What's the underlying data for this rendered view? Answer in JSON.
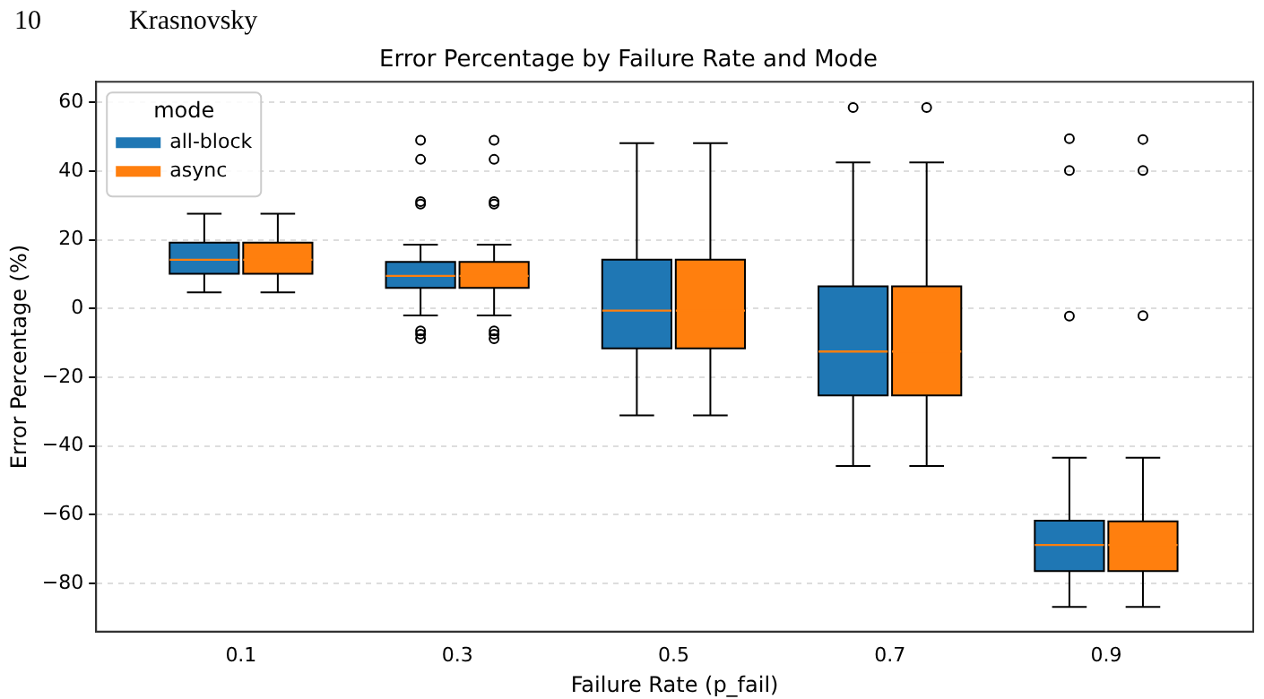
{
  "chart_data": {
    "type": "box",
    "title": "Error Percentage by Failure Rate and Mode",
    "xlabel": "Failure Rate (p_fail)",
    "ylabel": "Error Percentage (%)",
    "legend_title": "mode",
    "annotations": [
      "10",
      "Krasnovsky"
    ],
    "categories": [
      "0.1",
      "0.3",
      "0.5",
      "0.7",
      "0.9"
    ],
    "ylim": [
      -94,
      66
    ],
    "yticks": [
      -80,
      -60,
      -40,
      -20,
      0,
      20,
      40,
      60
    ],
    "grid": "y",
    "legend": "top left",
    "series": [
      {
        "name": "all-block",
        "color": "#1f77b4",
        "boxes": [
          {
            "low": 4.7,
            "q1": 10.1,
            "median": 14.2,
            "q3": 19.2,
            "high": 27.6
          },
          {
            "low": -2.0,
            "q1": 6.0,
            "median": 9.5,
            "q3": 13.6,
            "high": 18.6,
            "outliers": [
              49,
              43.4,
              31.1,
              30.4,
              -6.5,
              -7.5,
              -8.8
            ]
          },
          {
            "low": -31.1,
            "q1": -11.6,
            "median": -0.6,
            "q3": 14.2,
            "high": 48.1
          },
          {
            "low": -45.8,
            "q1": -25.3,
            "median": -12.5,
            "q3": 6.5,
            "high": 42.5,
            "outliers": [
              58.5
            ]
          },
          {
            "low": -86.8,
            "q1": -76.4,
            "median": -68.8,
            "q3": -61.7,
            "high": -43.4,
            "outliers": [
              49.4,
              40.2,
              -2.2
            ]
          }
        ]
      },
      {
        "name": "async",
        "color": "#ff7f0e",
        "boxes": [
          {
            "low": 4.7,
            "q1": 10.1,
            "median": 14.2,
            "q3": 19.2,
            "high": 27.6
          },
          {
            "low": -2.0,
            "q1": 6.0,
            "median": 9.5,
            "q3": 13.6,
            "high": 18.6,
            "outliers": [
              49,
              43.4,
              31.1,
              30.4,
              -6.5,
              -7.5,
              -8.8
            ]
          },
          {
            "low": -31.1,
            "q1": -11.6,
            "median": -0.6,
            "q3": 14.2,
            "high": 48.1
          },
          {
            "low": -45.8,
            "q1": -25.3,
            "median": -12.5,
            "q3": 6.5,
            "high": 42.5,
            "outliers": [
              58.5
            ]
          },
          {
            "low": -86.8,
            "q1": -76.4,
            "median": -68.8,
            "q3": -61.9,
            "high": -43.4,
            "outliers": [
              49.2,
              40.2,
              -2.1
            ]
          }
        ]
      }
    ]
  }
}
